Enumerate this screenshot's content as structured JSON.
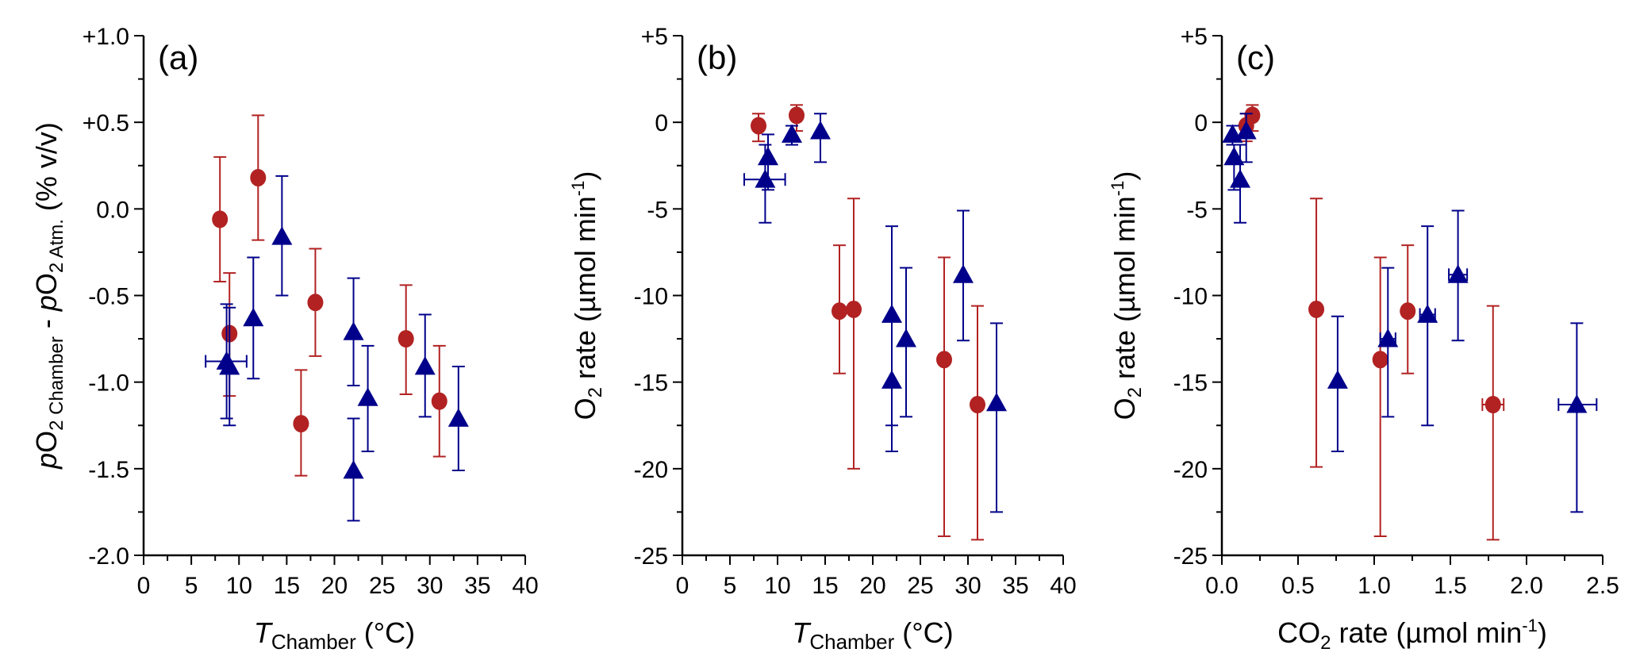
{
  "colors": {
    "red_series": "#B22222",
    "blue_series": "#00008B",
    "axis": "#000000"
  },
  "chart_data": [
    {
      "type": "scatter",
      "panel_label": "(a)",
      "xlabel": "T_Chamber (°C)",
      "xlabel_main": "T",
      "xlabel_sub": "Chamber",
      "xlabel_tail": " (°C)",
      "ylabel_parts": [
        "p",
        "O",
        "2 Chamber",
        " - ",
        "p",
        "O",
        "2 Atm.",
        " (% v/v)"
      ],
      "xlim": [
        0,
        40
      ],
      "ylim": [
        -2.0,
        1.0
      ],
      "xticks": [
        0,
        5,
        10,
        15,
        20,
        25,
        30,
        35,
        40
      ],
      "xtick_labels": [
        "0",
        "5",
        "10",
        "15",
        "20",
        "25",
        "30",
        "35",
        "40"
      ],
      "yticks": [
        1.0,
        0.5,
        0.0,
        -0.5,
        -1.0,
        -1.5,
        -2.0
      ],
      "ytick_labels": [
        "+1.0",
        "+0.5",
        "0.0",
        "-0.5",
        "-1.0",
        "-1.5",
        "-2.0"
      ],
      "series": [
        {
          "name": "red circles",
          "marker": "circle",
          "color": "#B22222",
          "points": [
            {
              "x": 8.0,
              "y": -0.06,
              "ylo": -0.42,
              "yhi": 0.3
            },
            {
              "x": 9.0,
              "y": -0.72,
              "ylo": -1.08,
              "yhi": -0.37
            },
            {
              "x": 12.0,
              "y": 0.18,
              "ylo": -0.18,
              "yhi": 0.54
            },
            {
              "x": 16.5,
              "y": -1.24,
              "ylo": -1.54,
              "yhi": -0.93
            },
            {
              "x": 18.0,
              "y": -0.54,
              "ylo": -0.85,
              "yhi": -0.23
            },
            {
              "x": 27.5,
              "y": -0.75,
              "ylo": -1.07,
              "yhi": -0.44
            },
            {
              "x": 31.0,
              "y": -1.11,
              "ylo": -1.43,
              "yhi": -0.79
            }
          ]
        },
        {
          "name": "blue triangles",
          "marker": "triangle",
          "color": "#00008B",
          "points": [
            {
              "x": 8.7,
              "y": -0.88,
              "ylo": -1.21,
              "yhi": -0.55,
              "xlo": 6.5,
              "xhi": 10.8
            },
            {
              "x": 9.0,
              "y": -0.91,
              "ylo": -1.25,
              "yhi": -0.57
            },
            {
              "x": 11.5,
              "y": -0.63,
              "ylo": -0.98,
              "yhi": -0.28
            },
            {
              "x": 14.5,
              "y": -0.16,
              "ylo": -0.5,
              "yhi": 0.19
            },
            {
              "x": 22.0,
              "y": -0.71,
              "ylo": -1.02,
              "yhi": -0.4
            },
            {
              "x": 22.0,
              "y": -1.51,
              "ylo": -1.8,
              "yhi": -1.21
            },
            {
              "x": 23.5,
              "y": -1.09,
              "ylo": -1.4,
              "yhi": -0.79
            },
            {
              "x": 29.5,
              "y": -0.91,
              "ylo": -1.2,
              "yhi": -0.61
            },
            {
              "x": 33.0,
              "y": -1.21,
              "ylo": -1.51,
              "yhi": -0.91
            }
          ]
        }
      ]
    },
    {
      "type": "scatter",
      "panel_label": "(b)",
      "xlabel": "T_Chamber (°C)",
      "xlabel_main": "T",
      "xlabel_sub": "Chamber",
      "xlabel_tail": " (°C)",
      "ylabel": "O2 rate (µmol min-1)",
      "xlim": [
        0,
        40
      ],
      "ylim": [
        -25,
        5
      ],
      "xticks": [
        0,
        5,
        10,
        15,
        20,
        25,
        30,
        35,
        40
      ],
      "xtick_labels": [
        "0",
        "5",
        "10",
        "15",
        "20",
        "25",
        "30",
        "35",
        "40"
      ],
      "yticks": [
        5,
        0,
        -5,
        -10,
        -15,
        -20,
        -25
      ],
      "ytick_labels": [
        "+5",
        "0",
        "-5",
        "-10",
        "-15",
        "-20",
        "-25"
      ],
      "series": [
        {
          "name": "red circles",
          "marker": "circle",
          "color": "#B22222",
          "points": [
            {
              "x": 8.0,
              "y": -0.2,
              "ylo": -1.1,
              "yhi": 0.5
            },
            {
              "x": 12.0,
              "y": 0.4,
              "ylo": -0.5,
              "yhi": 1.0
            },
            {
              "x": 16.5,
              "y": -10.9,
              "ylo": -14.5,
              "yhi": -7.1
            },
            {
              "x": 18.0,
              "y": -10.8,
              "ylo": -20.0,
              "yhi": -4.4
            },
            {
              "x": 27.5,
              "y": -13.7,
              "ylo": -23.9,
              "yhi": -7.8
            },
            {
              "x": 31.0,
              "y": -16.3,
              "ylo": -24.1,
              "yhi": -10.6
            }
          ]
        },
        {
          "name": "blue triangles",
          "marker": "triangle",
          "color": "#00008B",
          "points": [
            {
              "x": 8.7,
              "y": -3.3,
              "ylo": -5.8,
              "yhi": -1.3,
              "xlo": 6.5,
              "xhi": 10.8
            },
            {
              "x": 9.0,
              "y": -2.0,
              "ylo": -3.9,
              "yhi": -0.7
            },
            {
              "x": 11.5,
              "y": -0.7,
              "ylo": -1.3,
              "yhi": -0.2
            },
            {
              "x": 14.5,
              "y": -0.5,
              "ylo": -2.3,
              "yhi": 0.5
            },
            {
              "x": 22.0,
              "y": -11.1,
              "ylo": -17.5,
              "yhi": -6.0
            },
            {
              "x": 22.0,
              "y": -14.9,
              "ylo": -19.0,
              "yhi": -11.2
            },
            {
              "x": 23.5,
              "y": -12.5,
              "ylo": -17.0,
              "yhi": -8.4
            },
            {
              "x": 29.5,
              "y": -8.8,
              "ylo": -12.6,
              "yhi": -5.1
            },
            {
              "x": 33.0,
              "y": -16.2,
              "ylo": -22.5,
              "yhi": -11.6
            }
          ]
        }
      ]
    },
    {
      "type": "scatter",
      "panel_label": "(c)",
      "xlabel": "CO2 rate (µmol min-1)",
      "ylabel": "O2 rate (µmol min-1)",
      "xlim": [
        0,
        2.5
      ],
      "ylim": [
        -25,
        5
      ],
      "xticks": [
        0,
        0.5,
        1.0,
        1.5,
        2.0,
        2.5
      ],
      "xtick_labels": [
        "0.0",
        "0.5",
        "1.0",
        "1.5",
        "2.0",
        "2.5"
      ],
      "yticks": [
        5,
        0,
        -5,
        -10,
        -15,
        -20,
        -25
      ],
      "ytick_labels": [
        "+5",
        "0",
        "-5",
        "-10",
        "-15",
        "-20",
        "-25"
      ],
      "series": [
        {
          "name": "red circles",
          "marker": "circle",
          "color": "#B22222",
          "points": [
            {
              "x": 0.16,
              "y": -0.2,
              "ylo": -1.1,
              "yhi": 0.5
            },
            {
              "x": 0.2,
              "y": 0.4,
              "ylo": -0.5,
              "yhi": 1.0
            },
            {
              "x": 0.62,
              "y": -10.8,
              "ylo": -19.9,
              "yhi": -4.4
            },
            {
              "x": 1.04,
              "y": -13.7,
              "ylo": -23.9,
              "yhi": -7.8
            },
            {
              "x": 1.22,
              "y": -10.9,
              "ylo": -14.5,
              "yhi": -7.1,
              "xlo": 1.19,
              "xhi": 1.25
            },
            {
              "x": 1.78,
              "y": -16.3,
              "ylo": -24.1,
              "yhi": -10.6,
              "xlo": 1.71,
              "xhi": 1.85
            }
          ]
        },
        {
          "name": "blue triangles",
          "marker": "triangle",
          "color": "#00008B",
          "points": [
            {
              "x": 0.07,
              "y": -0.7,
              "ylo": -1.3,
              "yhi": -0.2
            },
            {
              "x": 0.08,
              "y": -2.0,
              "ylo": -3.9,
              "yhi": -1.3
            },
            {
              "x": 0.12,
              "y": -3.3,
              "ylo": -5.8,
              "yhi": -1.3
            },
            {
              "x": 0.16,
              "y": -0.5,
              "ylo": -2.3,
              "yhi": 0.5
            },
            {
              "x": 0.76,
              "y": -14.9,
              "ylo": -19.0,
              "yhi": -11.2
            },
            {
              "x": 1.09,
              "y": -12.5,
              "ylo": -17.0,
              "yhi": -8.4,
              "xlo": 1.04,
              "xhi": 1.14
            },
            {
              "x": 1.35,
              "y": -11.1,
              "ylo": -17.5,
              "yhi": -6.0,
              "xlo": 1.3,
              "xhi": 1.4
            },
            {
              "x": 1.55,
              "y": -8.8,
              "ylo": -12.6,
              "yhi": -5.1,
              "xlo": 1.49,
              "xhi": 1.61
            },
            {
              "x": 2.33,
              "y": -16.3,
              "ylo": -22.5,
              "yhi": -11.6,
              "xlo": 2.21,
              "xhi": 2.46
            }
          ]
        }
      ]
    }
  ]
}
